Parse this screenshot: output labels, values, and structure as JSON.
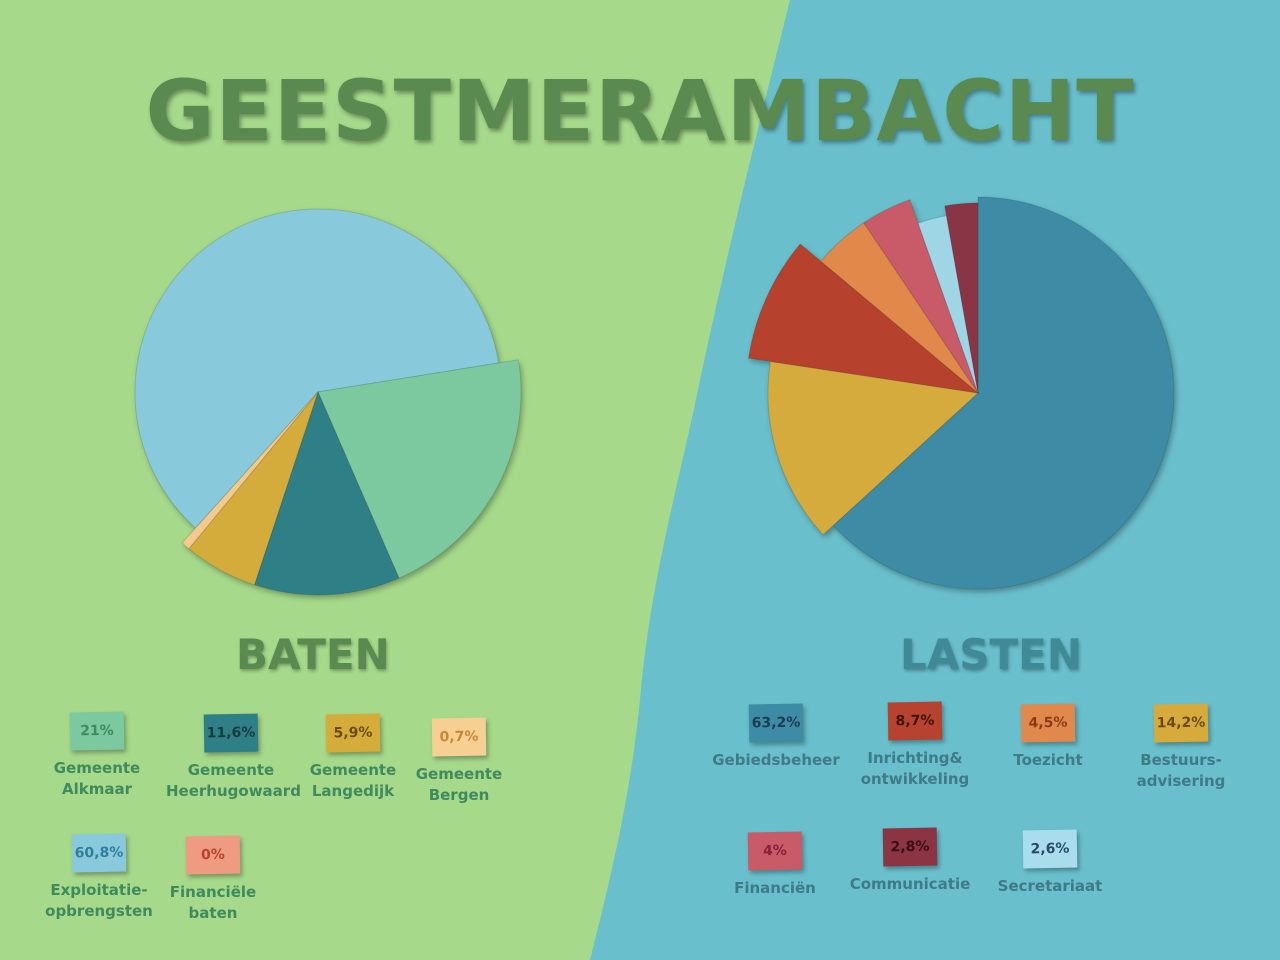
{
  "title": "GEESTMERAMBACHT",
  "colors": {
    "green_bg": "#a6d98a",
    "blue_bg": "#69bfcc",
    "green_text": "#5a8a50",
    "blue_text": "#3f8a96"
  },
  "chart_data": [
    {
      "type": "pie",
      "title": "BATEN",
      "categories": [
        "Exploitatie-opbrengsten",
        "Gemeente Alkmaar",
        "Gemeente Heerhugowaard",
        "Gemeente Langedijk",
        "Gemeente Bergen",
        "Financiële baten"
      ],
      "values": [
        60.8,
        21,
        11.6,
        5.9,
        0.7,
        0
      ],
      "labels": [
        "60,8%",
        "21%",
        "11,6%",
        "5,9%",
        "0,7%",
        "0%"
      ],
      "colors": [
        "#88cadb",
        "#7cc99f",
        "#2f7f86",
        "#d4ac3a",
        "#f3c98d",
        "#ea8f77"
      ]
    },
    {
      "type": "pie",
      "title": "LASTEN",
      "categories": [
        "Gebiedsbeheer",
        "Bestuurs-advisering",
        "Inrichting& ontwikkeling",
        "Toezicht",
        "Financiën",
        "Secretariaat",
        "Communicatie"
      ],
      "values": [
        63.2,
        14.2,
        8.7,
        4.5,
        4,
        2.6,
        2.8
      ],
      "labels": [
        "63,2%",
        "14,2%",
        "8,7%",
        "4,5%",
        "4%",
        "2,6%",
        "2,8%"
      ],
      "colors": [
        "#3d8ba4",
        "#d6ab3c",
        "#b6432f",
        "#e1884c",
        "#c95a68",
        "#9fd6e6",
        "#8a3444"
      ]
    }
  ],
  "legend": {
    "baten": [
      {
        "value": "21%",
        "label": "Gemeente\nAlkmaar",
        "chip": "#7cc99f",
        "text": "#3f8a5e"
      },
      {
        "value": "11,6%",
        "label": "Gemeente\nHeerhugowaard",
        "chip": "#2f7f86",
        "text": "#123c40"
      },
      {
        "value": "5,9%",
        "label": "Gemeente\nLangedijk",
        "chip": "#d4ac3a",
        "text": "#6b4a12"
      },
      {
        "value": "0,7%",
        "label": "Gemeente\nBergen",
        "chip": "#f6cf93",
        "text": "#c98a36"
      },
      {
        "value": "60,8%",
        "label": "Exploitatie-\nopbrengsten",
        "chip": "#88cadb",
        "text": "#2f7f9a"
      },
      {
        "value": "0%",
        "label": "Financiële\nbaten",
        "chip": "#ee9b82",
        "text": "#b6432f"
      }
    ],
    "lasten": [
      {
        "value": "63,2%",
        "label": "Gebiedsbeheer",
        "chip": "#3d8ba4",
        "text": "#1c3d52"
      },
      {
        "value": "8,7%",
        "label": "Inrichting&\nontwikkeling",
        "chip": "#b6432f",
        "text": "#3f120a"
      },
      {
        "value": "4,5%",
        "label": "Toezicht",
        "chip": "#e1884c",
        "text": "#8a3d15"
      },
      {
        "value": "14,2%",
        "label": "Bestuurs-\nadvisering",
        "chip": "#d6ab3c",
        "text": "#6b4a12"
      },
      {
        "value": "4%",
        "label": "Financiën",
        "chip": "#c95a68",
        "text": "#8a1f3a"
      },
      {
        "value": "2,8%",
        "label": "Communicatie",
        "chip": "#8a3444",
        "text": "#3a0f18"
      },
      {
        "value": "2,6%",
        "label": "Secretariaat",
        "chip": "#a9dcec",
        "text": "#2a4a6a"
      }
    ]
  }
}
